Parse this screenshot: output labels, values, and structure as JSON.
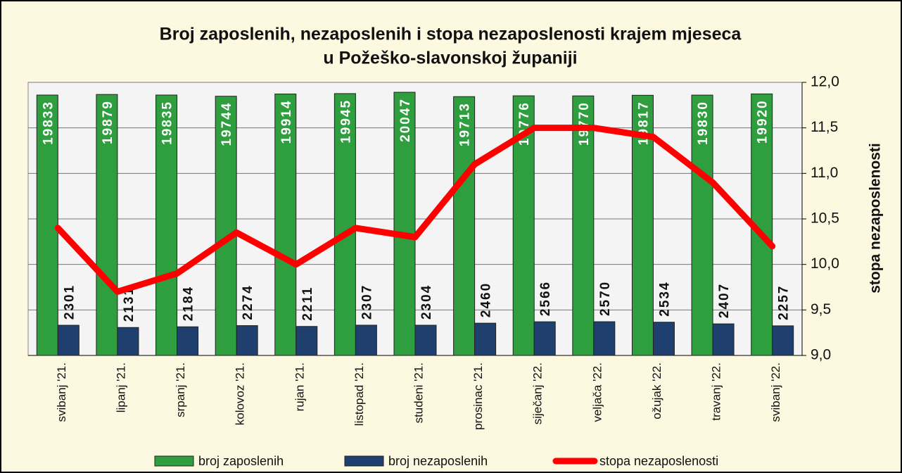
{
  "chart_data": {
    "type": "bar-line",
    "title": [
      "Broj zaposlenih, nezaposlenih i stopa nezaposlenosti krajem mjeseca",
      "u Požeško-slavonskoj županiji"
    ],
    "categories": [
      "svibanj '21.",
      "lipanj '21.",
      "srpanj '21.",
      "kolovoz '21.",
      "rujan '21.",
      "listopad '21.",
      "studeni '21.",
      "prosinac '21.",
      "siječanj '22.",
      "veljača '22.",
      "ožujak '22.",
      "travanj '22.",
      "svibanj '22."
    ],
    "series": [
      {
        "name": "broj zaposlenih",
        "color": "#2e9e3e",
        "values": [
          19833,
          19879,
          19835,
          19744,
          19914,
          19945,
          20047,
          19713,
          19776,
          19770,
          19817,
          19830,
          19920
        ]
      },
      {
        "name": "broj nezaposlenih",
        "color": "#1f3f6e",
        "values": [
          2301,
          2131,
          2184,
          2274,
          2211,
          2307,
          2304,
          2460,
          2566,
          2570,
          2534,
          2407,
          2257
        ]
      },
      {
        "name": "stopa nezaposlenosti",
        "color": "#ff0000",
        "axis": "y2",
        "values": [
          10.4,
          9.7,
          9.9,
          10.35,
          10.0,
          10.4,
          10.3,
          11.1,
          11.5,
          11.5,
          11.4,
          10.9,
          10.2
        ]
      }
    ],
    "ylim": [
      0,
      20800
    ],
    "y2lim": [
      9.0,
      12.0
    ],
    "y2ticks": [
      {
        "value": 9.0,
        "label": "9,0"
      },
      {
        "value": 9.5,
        "label": "9,5"
      },
      {
        "value": 10.0,
        "label": "10,0"
      },
      {
        "value": 10.5,
        "label": "10,5"
      },
      {
        "value": 11.0,
        "label": "11,0"
      },
      {
        "value": 11.5,
        "label": "11,5"
      },
      {
        "value": 12.0,
        "label": "12,0"
      }
    ],
    "y2label": "stopa nezaposlenosti",
    "grid": true
  }
}
